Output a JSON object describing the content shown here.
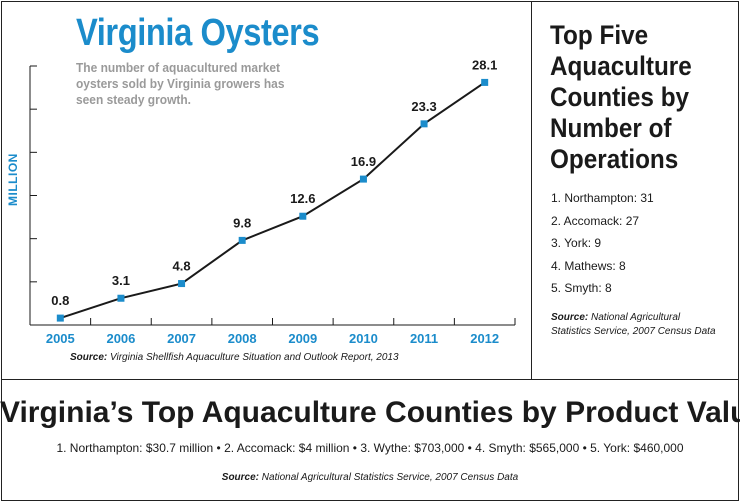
{
  "chart_data": {
    "type": "line",
    "title": "Virginia Oysters",
    "subtitle": "The number of aquacultured market oysters sold by Virginia growers has seen steady growth.",
    "xlabel": "",
    "ylabel": "MILLION",
    "x": [
      "2005",
      "2006",
      "2007",
      "2008",
      "2009",
      "2010",
      "2011",
      "2012"
    ],
    "values": [
      0.8,
      3.1,
      4.8,
      9.8,
      12.6,
      16.9,
      23.3,
      28.1
    ],
    "data_labels": [
      "0.8",
      "3.1",
      "4.8",
      "9.8",
      "12.6",
      "16.9",
      "23.3",
      "28.1"
    ],
    "ylim": [
      0,
      30
    ],
    "grid": false,
    "line_color": "#1a1a1a",
    "marker_color": "#1b8ccb",
    "source_label": "Source:",
    "source_text": "Virginia Shellfish Aquaculture Situation and Outlook Report, 2013"
  },
  "side_panel": {
    "title": "Top Five Aquaculture Counties by Number of Operations",
    "items": [
      "1. Northampton: 31",
      "2. Accomack: 27",
      "3. York: 9",
      "4. Mathews: 8",
      "5. Smyth: 8"
    ],
    "source_label": "Source:",
    "source_text": "National Agricultural Statistics Service, 2007 Census Data"
  },
  "bottom_panel": {
    "title": "Virginia’s Top Aquaculture Counties by Product Value",
    "items_text": "1. Northampton: $30.7 million • 2. Accomack: $4 million • 3. Wythe: $703,000 • 4. Smyth: $565,000 • 5. York: $460,000",
    "source_label": "Source:",
    "source_text": "National Agricultural Statistics Service, 2007 Census Data"
  },
  "colors": {
    "accent": "#1b8ccb",
    "subtitle_gray": "#9a9a9a",
    "text": "#1a1a1a"
  }
}
